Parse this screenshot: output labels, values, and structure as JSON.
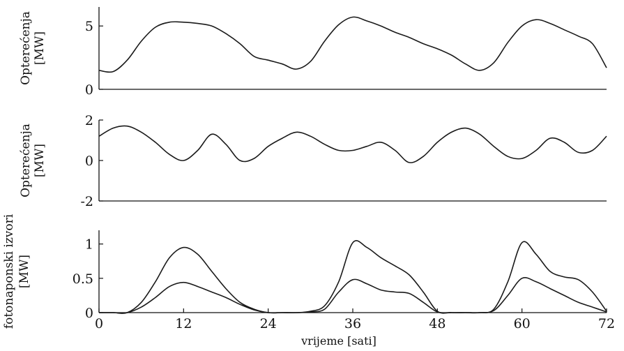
{
  "chart_data": [
    {
      "type": "line",
      "ylabel": [
        "Opterećenja",
        "[MW]"
      ],
      "ylim": [
        0,
        6.5
      ],
      "yticks": [
        0,
        5
      ],
      "xlim": [
        0,
        72
      ],
      "xticks": [],
      "grid": false,
      "series": [
        {
          "x": [
            0,
            2,
            4,
            6,
            8,
            10,
            12,
            14,
            16,
            18,
            20,
            22,
            24,
            26,
            28,
            30,
            32,
            34,
            36,
            38,
            40,
            42,
            44,
            46,
            48,
            50,
            52,
            54,
            56,
            58,
            60,
            62,
            64,
            66,
            68,
            70,
            72
          ],
          "values": [
            1.5,
            1.4,
            2.3,
            3.8,
            4.9,
            5.3,
            5.3,
            5.2,
            5.0,
            4.4,
            3.6,
            2.6,
            2.3,
            2.0,
            1.6,
            2.2,
            3.8,
            5.1,
            5.7,
            5.4,
            5.0,
            4.5,
            4.1,
            3.6,
            3.2,
            2.7,
            2.0,
            1.5,
            2.1,
            3.7,
            5.0,
            5.5,
            5.2,
            4.7,
            4.2,
            3.6,
            1.7
          ]
        }
      ]
    },
    {
      "type": "line",
      "ylabel": [
        "Opterećenja",
        "[MW]"
      ],
      "ylim": [
        -2,
        2
      ],
      "yticks": [
        -2,
        0,
        2
      ],
      "xlim": [
        0,
        72
      ],
      "xticks": [],
      "grid": false,
      "series": [
        {
          "x": [
            0,
            2,
            4,
            6,
            8,
            10,
            12,
            14,
            16,
            18,
            20,
            22,
            24,
            26,
            28,
            30,
            32,
            34,
            36,
            38,
            40,
            42,
            44,
            46,
            48,
            50,
            52,
            54,
            56,
            58,
            60,
            62,
            64,
            66,
            68,
            70,
            72
          ],
          "values": [
            1.2,
            1.6,
            1.7,
            1.4,
            0.9,
            0.3,
            0.0,
            0.5,
            1.3,
            0.8,
            0.0,
            0.1,
            0.7,
            1.1,
            1.4,
            1.2,
            0.8,
            0.5,
            0.5,
            0.7,
            0.9,
            0.5,
            -0.1,
            0.2,
            0.9,
            1.4,
            1.6,
            1.3,
            0.7,
            0.2,
            0.1,
            0.5,
            1.1,
            0.9,
            0.4,
            0.5,
            1.2
          ]
        }
      ]
    },
    {
      "type": "line",
      "ylabel": [
        "fotonaponski izvori",
        "[MW]"
      ],
      "xlabel": "vrijeme [sati]",
      "ylim": [
        0,
        1.2
      ],
      "yticks": [
        0,
        0.5,
        1
      ],
      "xlim": [
        0,
        72
      ],
      "xticks": [
        0,
        12,
        24,
        36,
        48,
        60,
        72
      ],
      "grid": false,
      "series": [
        {
          "x": [
            0,
            2,
            4,
            6,
            8,
            10,
            12,
            14,
            16,
            18,
            20,
            22,
            24,
            26,
            28,
            30,
            32,
            34,
            36,
            38,
            40,
            42,
            44,
            46,
            48,
            50,
            52,
            54,
            56,
            58,
            60,
            62,
            64,
            66,
            68,
            70,
            72
          ],
          "values": [
            0,
            0,
            0,
            0.15,
            0.45,
            0.8,
            0.95,
            0.85,
            0.6,
            0.35,
            0.15,
            0.05,
            0,
            0,
            0,
            0.02,
            0.1,
            0.45,
            1.02,
            0.95,
            0.8,
            0.68,
            0.55,
            0.3,
            0.02,
            0,
            0,
            0,
            0.05,
            0.45,
            1.02,
            0.85,
            0.6,
            0.52,
            0.48,
            0.3,
            0.02
          ]
        },
        {
          "x": [
            0,
            2,
            4,
            6,
            8,
            10,
            12,
            14,
            16,
            18,
            20,
            22,
            24,
            26,
            28,
            30,
            32,
            34,
            36,
            38,
            40,
            42,
            44,
            46,
            48,
            50,
            52,
            54,
            56,
            58,
            60,
            62,
            64,
            66,
            68,
            70,
            72
          ],
          "values": [
            0,
            0,
            0,
            0.08,
            0.22,
            0.38,
            0.44,
            0.38,
            0.3,
            0.22,
            0.12,
            0.04,
            0,
            0,
            0,
            0.01,
            0.05,
            0.3,
            0.48,
            0.42,
            0.33,
            0.3,
            0.28,
            0.15,
            0.01,
            0,
            0,
            0,
            0.03,
            0.25,
            0.5,
            0.45,
            0.35,
            0.25,
            0.15,
            0.08,
            0.01
          ]
        }
      ]
    }
  ]
}
